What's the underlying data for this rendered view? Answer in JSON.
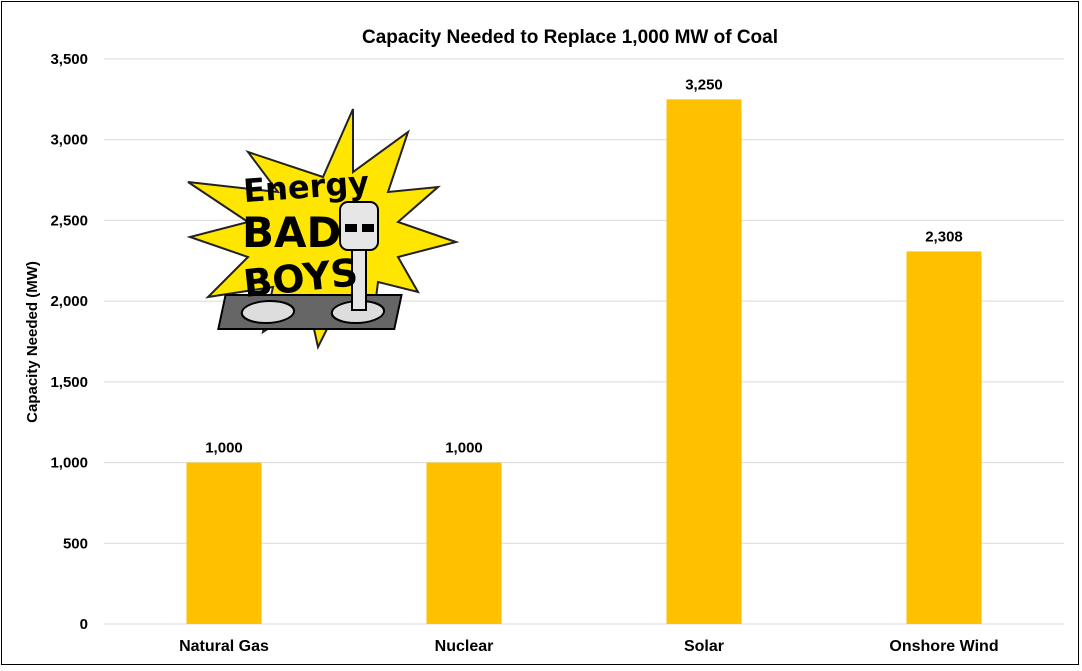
{
  "chart_data": {
    "type": "bar",
    "title": "Capacity Needed to Replace 1,000 MW of Coal",
    "ylabel": "Capacity Needed (MW)",
    "xlabel": "",
    "categories": [
      "Natural Gas",
      "Nuclear",
      "Solar",
      "Onshore Wind"
    ],
    "values": [
      1000,
      1000,
      3250,
      2308
    ],
    "data_labels": [
      "1,000",
      "1,000",
      "3,250",
      "2,308"
    ],
    "ylim": [
      0,
      3500
    ],
    "y_ticks": [
      0,
      500,
      1000,
      1500,
      2000,
      2500,
      3000,
      3500
    ],
    "y_tick_labels": [
      "0",
      "500",
      "1,000",
      "1,500",
      "2,000",
      "2,500",
      "3,000",
      "3,500"
    ],
    "grid": true,
    "bar_color": "#ffc000"
  },
  "logo": {
    "line1": "Energy",
    "line2": "BAD",
    "line3": "BOYS",
    "starburst_color": "#ffe600"
  }
}
